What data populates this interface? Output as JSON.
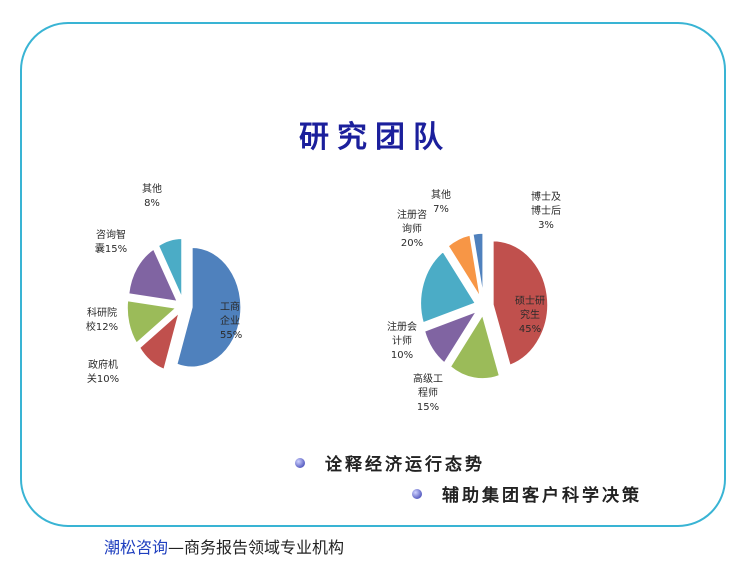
{
  "slide": {
    "title": "研究团队",
    "bullets": [
      "诠释经济运行态势",
      "辅助集团客户科学决策"
    ],
    "footer_brand": "潮松咨询",
    "footer_rest": "—商务报告领域专业机构"
  },
  "chart_data": [
    {
      "type": "pie",
      "title": "",
      "slices": [
        {
          "label": [
            "工商",
            "企业",
            "55%"
          ],
          "value": 55,
          "color": "#4f81bd"
        },
        {
          "label": [
            "政府机",
            "关10%"
          ],
          "value": 10,
          "color": "#c0504d"
        },
        {
          "label": [
            "科研院",
            "校12%"
          ],
          "value": 12,
          "color": "#9bbb59"
        },
        {
          "label": [
            "咨询智",
            "囊15%"
          ],
          "value": 15,
          "color": "#8064a2"
        },
        {
          "label": [
            "其他",
            "8%"
          ],
          "value": 8,
          "color": "#4bacc6"
        }
      ]
    },
    {
      "type": "pie",
      "title": "",
      "slices": [
        {
          "label": [
            "硕士研",
            "究生",
            "45%"
          ],
          "value": 45,
          "color": "#c0504d"
        },
        {
          "label": [
            "高级工",
            "程师",
            "15%"
          ],
          "value": 15,
          "color": "#9bbb59"
        },
        {
          "label": [
            "注册会",
            "计师",
            "10%"
          ],
          "value": 10,
          "color": "#8064a2"
        },
        {
          "label": [
            "注册咨",
            "询师",
            "20%"
          ],
          "value": 20,
          "color": "#4bacc6"
        },
        {
          "label": [
            "其他",
            "7%"
          ],
          "value": 7,
          "color": "#f79646"
        },
        {
          "label": [
            "博士及",
            "博士后",
            "3%"
          ],
          "value": 3,
          "color": "#4f81bd"
        }
      ]
    }
  ]
}
